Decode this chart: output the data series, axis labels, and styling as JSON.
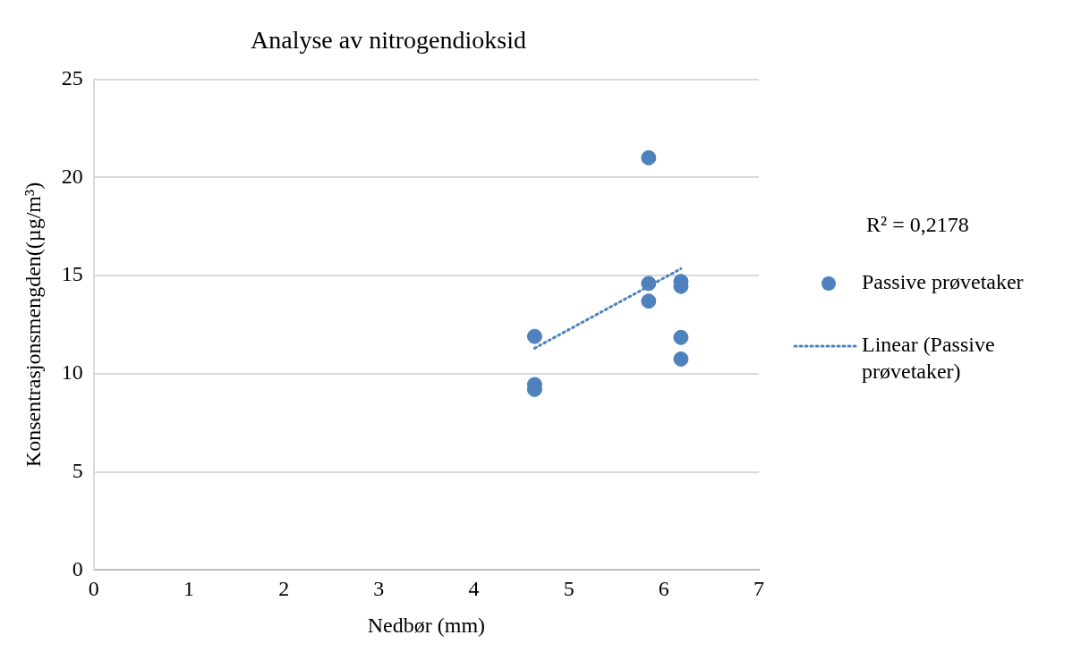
{
  "chart_data": {
    "type": "scatter",
    "title": "Analyse av nitrogendioksid",
    "xlabel": "Nedbør (mm)",
    "ylabel": "Konsentrasjonsmengden((µg/m³)",
    "series": [
      {
        "name": "Passive prøvetaker",
        "color": "#4f81bd",
        "x": [
          4.64,
          4.64,
          4.64,
          5.84,
          5.84,
          5.84,
          6.18,
          6.18,
          6.18,
          6.18
        ],
        "values": [
          11.9,
          9.45,
          9.2,
          21.0,
          14.6,
          13.7,
          14.7,
          14.45,
          11.85,
          10.75
        ]
      },
      {
        "name": "Linear (Passive prøvetaker)",
        "color": "#4f81bd",
        "type": "line",
        "line_style": "dotted",
        "marker": "none",
        "x": [
          4.64,
          6.18
        ],
        "values": [
          11.3,
          15.35
        ]
      }
    ],
    "annotations": [
      "R² = 0,2178"
    ],
    "marker": "circle",
    "xlim": [
      0,
      7
    ],
    "xticks": [
      0,
      1,
      2,
      3,
      4,
      5,
      6,
      7
    ],
    "ylim": [
      0,
      25
    ],
    "yticks": [
      0,
      5,
      10,
      15,
      20,
      25
    ],
    "grid": "y",
    "legend": "right"
  }
}
